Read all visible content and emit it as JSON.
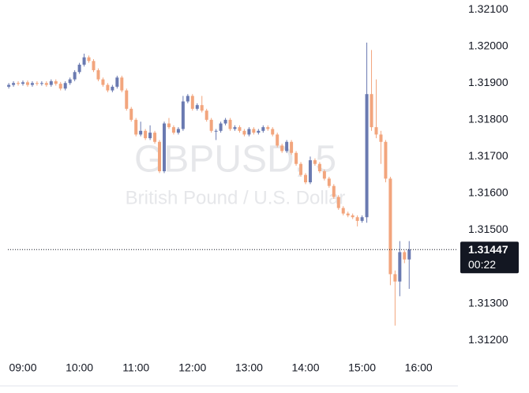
{
  "chart_data": {
    "type": "candlestick",
    "watermark": "GBPUSD, 5",
    "subtitle": "British Pound / U.S. Dollar",
    "x": [
      "08:45",
      "08:50",
      "08:55",
      "09:00",
      "09:05",
      "09:10",
      "09:15",
      "09:20",
      "09:25",
      "09:30",
      "09:35",
      "09:40",
      "09:45",
      "09:50",
      "09:55",
      "10:00",
      "10:05",
      "10:10",
      "10:15",
      "10:20",
      "10:25",
      "10:30",
      "10:35",
      "10:40",
      "10:45",
      "10:50",
      "10:55",
      "11:00",
      "11:05",
      "11:10",
      "11:15",
      "11:20",
      "11:25",
      "11:30",
      "11:35",
      "11:40",
      "11:45",
      "11:50",
      "11:55",
      "12:00",
      "12:05",
      "12:10",
      "12:15",
      "12:20",
      "12:25",
      "12:30",
      "12:35",
      "12:40",
      "12:45",
      "12:50",
      "12:55",
      "13:00",
      "13:05",
      "13:10",
      "13:15",
      "13:20",
      "13:25",
      "13:30",
      "13:35",
      "13:40",
      "13:45",
      "13:50",
      "13:55",
      "14:00",
      "14:05",
      "14:10",
      "14:15",
      "14:20",
      "14:25",
      "14:30",
      "14:35",
      "14:40",
      "14:45",
      "14:50",
      "14:55",
      "15:00",
      "15:05",
      "15:10",
      "15:15",
      "15:20",
      "15:25",
      "15:30",
      "15:35",
      "15:40",
      "15:45",
      "15:50"
    ],
    "open": [
      1.3189,
      1.31895,
      1.319,
      1.31898,
      1.31902,
      1.31895,
      1.319,
      1.31898,
      1.319,
      1.31895,
      1.31905,
      1.31898,
      1.31885,
      1.319,
      1.3191,
      1.3193,
      1.3195,
      1.3197,
      1.3196,
      1.31935,
      1.3191,
      1.31895,
      1.3188,
      1.3189,
      1.31915,
      1.3188,
      1.3183,
      1.318,
      1.3176,
      1.3177,
      1.3175,
      1.31765,
      1.3174,
      1.3166,
      1.3179,
      1.3178,
      1.31765,
      1.31775,
      1.3185,
      1.31865,
      1.3183,
      1.3184,
      1.31825,
      1.318,
      1.3177,
      1.3177,
      1.3179,
      1.318,
      1.31775,
      1.3178,
      1.3177,
      1.3176,
      1.31775,
      1.31765,
      1.3177,
      1.3178,
      1.31775,
      1.3176,
      1.3173,
      1.31715,
      1.3174,
      1.3171,
      1.3168,
      1.3165,
      1.3163,
      1.3169,
      1.3168,
      1.3166,
      1.3164,
      1.3162,
      1.3159,
      1.3156,
      1.31545,
      1.3154,
      1.31535,
      1.31525,
      1.31535,
      1.3187,
      1.3178,
      1.3176,
      1.3174,
      1.3164,
      1.3138,
      1.3136,
      1.3144,
      1.3142
    ],
    "high": [
      1.319,
      1.31905,
      1.31905,
      1.31907,
      1.31907,
      1.31905,
      1.31905,
      1.31905,
      1.31905,
      1.3191,
      1.3191,
      1.31903,
      1.31905,
      1.31915,
      1.31935,
      1.31955,
      1.3198,
      1.31975,
      1.31965,
      1.3194,
      1.31915,
      1.319,
      1.31895,
      1.3192,
      1.3192,
      1.31885,
      1.31835,
      1.31805,
      1.31795,
      1.31775,
      1.31785,
      1.3177,
      1.31745,
      1.31795,
      1.31805,
      1.31785,
      1.3178,
      1.31865,
      1.3187,
      1.3187,
      1.31845,
      1.31865,
      1.3183,
      1.31805,
      1.31775,
      1.31795,
      1.31805,
      1.31805,
      1.31785,
      1.31785,
      1.31775,
      1.3178,
      1.3178,
      1.31775,
      1.31785,
      1.31785,
      1.3178,
      1.31765,
      1.31735,
      1.31745,
      1.31745,
      1.31715,
      1.31685,
      1.31655,
      1.317,
      1.31695,
      1.31685,
      1.31665,
      1.31645,
      1.31625,
      1.31595,
      1.31565,
      1.3155,
      1.31545,
      1.3154,
      1.3154,
      1.3201,
      1.3199,
      1.3191,
      1.3177,
      1.31745,
      1.31645,
      1.3139,
      1.3147,
      1.31445,
      1.3147
    ],
    "low": [
      1.31885,
      1.3189,
      1.31893,
      1.31893,
      1.3189,
      1.3189,
      1.31893,
      1.31893,
      1.3189,
      1.3189,
      1.31893,
      1.3188,
      1.3188,
      1.31895,
      1.31905,
      1.31925,
      1.31945,
      1.31955,
      1.3193,
      1.31905,
      1.3189,
      1.31875,
      1.31875,
      1.31885,
      1.31875,
      1.31825,
      1.31795,
      1.31755,
      1.31755,
      1.31745,
      1.31745,
      1.31735,
      1.31655,
      1.31655,
      1.31775,
      1.3176,
      1.3176,
      1.3177,
      1.31845,
      1.31825,
      1.31825,
      1.3182,
      1.31795,
      1.31765,
      1.31745,
      1.31765,
      1.31785,
      1.3177,
      1.3177,
      1.31765,
      1.31755,
      1.31755,
      1.3176,
      1.3176,
      1.31765,
      1.3177,
      1.31755,
      1.31725,
      1.3171,
      1.3171,
      1.31705,
      1.31675,
      1.31645,
      1.31625,
      1.31625,
      1.31675,
      1.31655,
      1.31635,
      1.31615,
      1.31585,
      1.31555,
      1.3154,
      1.31535,
      1.3153,
      1.3151,
      1.3152,
      1.3152,
      1.3177,
      1.3175,
      1.3168,
      1.3163,
      1.3135,
      1.3124,
      1.3132,
      1.3141,
      1.3134
    ],
    "close": [
      1.31895,
      1.319,
      1.31898,
      1.31902,
      1.31895,
      1.319,
      1.31898,
      1.319,
      1.31895,
      1.31905,
      1.31898,
      1.31885,
      1.319,
      1.3191,
      1.3193,
      1.3195,
      1.3197,
      1.3196,
      1.31935,
      1.3191,
      1.31895,
      1.3188,
      1.3189,
      1.31915,
      1.3188,
      1.3183,
      1.318,
      1.3176,
      1.3177,
      1.3175,
      1.31765,
      1.3174,
      1.3166,
      1.3179,
      1.3178,
      1.31765,
      1.31775,
      1.3185,
      1.31865,
      1.3183,
      1.3184,
      1.31825,
      1.318,
      1.3177,
      1.3177,
      1.3179,
      1.318,
      1.31775,
      1.3178,
      1.3177,
      1.3176,
      1.31775,
      1.31765,
      1.3177,
      1.3178,
      1.31775,
      1.3176,
      1.3173,
      1.31715,
      1.3174,
      1.3171,
      1.3168,
      1.3165,
      1.3163,
      1.3169,
      1.3168,
      1.3166,
      1.3164,
      1.3162,
      1.3159,
      1.3156,
      1.31545,
      1.3154,
      1.31535,
      1.31525,
      1.31535,
      1.3187,
      1.3178,
      1.3176,
      1.3174,
      1.3164,
      1.3138,
      1.3136,
      1.3144,
      1.3142,
      1.31447
    ],
    "up_color": "#6a7ab1",
    "down_color": "#f2a57d",
    "ylim": [
      1.31149,
      1.32126
    ],
    "yticks": [
      {
        "value": 1.312,
        "label": "1.31200"
      },
      {
        "value": 1.313,
        "label": "1.31300"
      },
      {
        "value": 1.315,
        "label": "1.31500"
      },
      {
        "value": 1.316,
        "label": "1.31600"
      },
      {
        "value": 1.317,
        "label": "1.31700"
      },
      {
        "value": 1.318,
        "label": "1.31800"
      },
      {
        "value": 1.319,
        "label": "1.31900"
      },
      {
        "value": 1.32,
        "label": "1.32000"
      },
      {
        "value": 1.321,
        "label": "1.32100"
      }
    ],
    "xticks": [
      "09:00",
      "10:00",
      "11:00",
      "12:00",
      "13:00",
      "14:00",
      "15:00",
      "16:00"
    ],
    "last_price": 1.31447,
    "countdown": "00:22"
  }
}
